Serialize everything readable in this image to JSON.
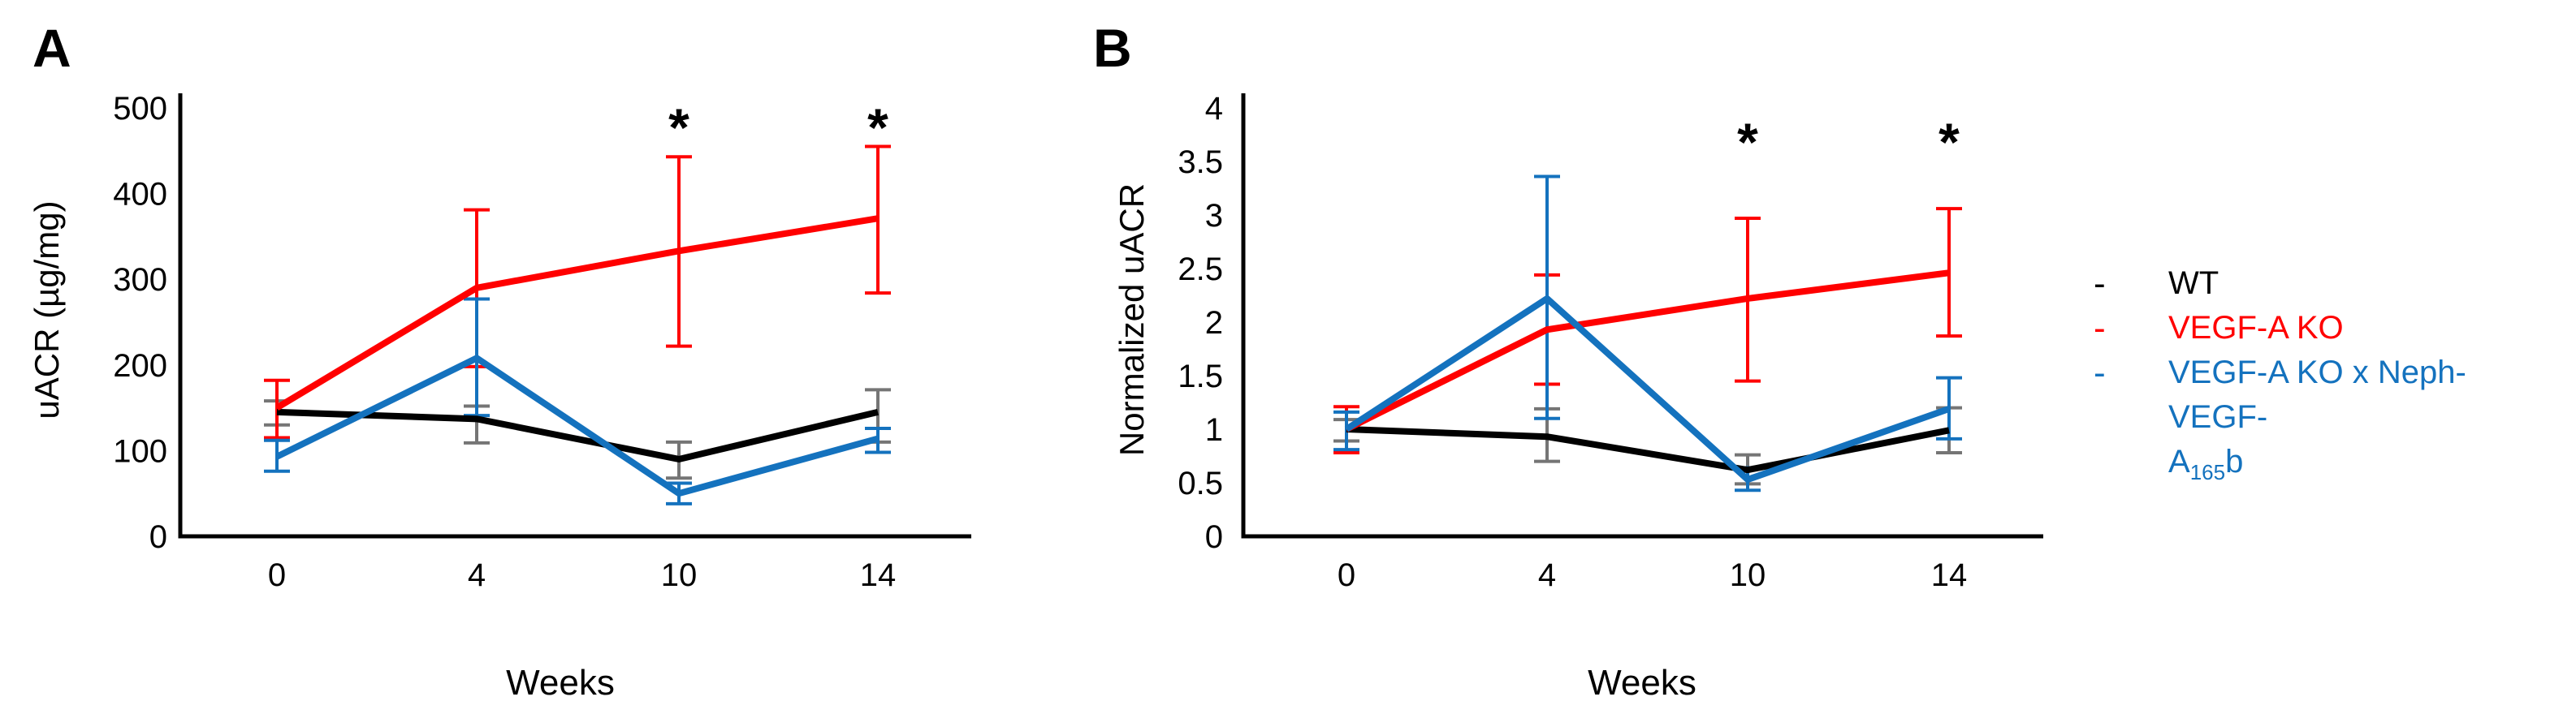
{
  "figure": {
    "background": "#FFFFFF",
    "accent_red": "#FF0000",
    "accent_blue": "#1472BE",
    "error_gray": "#757575"
  },
  "panels": [
    {
      "label": "A"
    },
    {
      "label": "B"
    }
  ],
  "chart_data": [
    {
      "panel": "A",
      "type": "line",
      "title": "",
      "xlabel": "Weeks",
      "ylabel": "uACR (µg/mg)",
      "x_categories": [
        "0",
        "4",
        "10",
        "14"
      ],
      "ylim": [
        0,
        500
      ],
      "yticks": [
        0,
        100,
        200,
        300,
        400,
        500
      ],
      "ytick_labels": [
        "0",
        "100",
        "200",
        "300",
        "400",
        "500"
      ],
      "grid": false,
      "legend_position": "right-of-figure",
      "series": [
        {
          "name": "WT",
          "color": "#000000",
          "error_color": "#757575",
          "values": [
            145,
            137,
            90,
            145
          ],
          "err_low": [
            130,
            109,
            68,
            110
          ],
          "err_high": [
            158,
            152,
            110,
            171
          ]
        },
        {
          "name": "VEGF-A KO",
          "color": "#FF0000",
          "error_color": "#FF0000",
          "values": [
            150,
            290,
            333,
            371
          ],
          "err_low": [
            115,
            198,
            222,
            284
          ],
          "err_high": [
            182,
            381,
            443,
            455
          ]
        },
        {
          "name": "VEGF-A KO x Neph-VEGF-A165b",
          "color": "#1472BE",
          "error_color": "#1472BE",
          "values": [
            93,
            208,
            50,
            114
          ],
          "err_low": [
            76,
            141,
            38,
            98
          ],
          "err_high": [
            112,
            277,
            62,
            126
          ]
        }
      ],
      "annotations": [
        {
          "text": "*",
          "x_index": 2
        },
        {
          "text": "*",
          "x_index": 3
        }
      ]
    },
    {
      "panel": "B",
      "type": "line",
      "title": "",
      "xlabel": "Weeks",
      "ylabel": "Normalized uACR",
      "x_categories": [
        "0",
        "4",
        "10",
        "14"
      ],
      "ylim": [
        0,
        4
      ],
      "yticks": [
        0,
        0.5,
        1,
        1.5,
        2,
        2.5,
        3,
        3.5,
        4
      ],
      "ytick_labels": [
        "0",
        "0.5",
        "1",
        "1.5",
        "2",
        "2.5",
        "3",
        "3.5",
        "4"
      ],
      "grid": false,
      "legend_position": "right-of-figure",
      "series": [
        {
          "name": "WT",
          "color": "#000000",
          "error_color": "#757575",
          "values": [
            1.0,
            0.93,
            0.62,
            0.99
          ],
          "err_low": [
            0.89,
            0.7,
            0.49,
            0.78
          ],
          "err_high": [
            1.09,
            1.19,
            0.76,
            1.2
          ]
        },
        {
          "name": "VEGF-A KO",
          "color": "#FF0000",
          "error_color": "#FF0000",
          "values": [
            1.0,
            1.93,
            2.22,
            2.46
          ],
          "err_low": [
            0.78,
            1.42,
            1.45,
            1.87
          ],
          "err_high": [
            1.21,
            2.44,
            2.97,
            3.06
          ]
        },
        {
          "name": "VEGF-A KO x Neph-VEGF-A165b",
          "color": "#1472BE",
          "error_color": "#1472BE",
          "values": [
            1.0,
            2.22,
            0.53,
            1.19
          ],
          "err_low": [
            0.81,
            1.1,
            0.43,
            0.91
          ],
          "err_high": [
            1.16,
            3.36,
            0.64,
            1.48
          ]
        }
      ],
      "annotations": [
        {
          "text": "*",
          "x_index": 2
        },
        {
          "text": "*",
          "x_index": 3
        }
      ]
    }
  ],
  "legend": {
    "items": [
      {
        "marker": "-",
        "color": "#000000",
        "lines": [
          [
            {
              "t": "WT"
            }
          ]
        ]
      },
      {
        "marker": "-",
        "color": "#FF0000",
        "lines": [
          [
            {
              "t": "VEGF-A KO"
            }
          ]
        ]
      },
      {
        "marker": "-",
        "color": "#1472BE",
        "lines": [
          [
            {
              "t": "VEGF-A KO x Neph-VEGF-"
            }
          ],
          [
            {
              "t": "A"
            },
            {
              "sub": "165"
            },
            {
              "t": "b"
            }
          ]
        ]
      }
    ]
  }
}
